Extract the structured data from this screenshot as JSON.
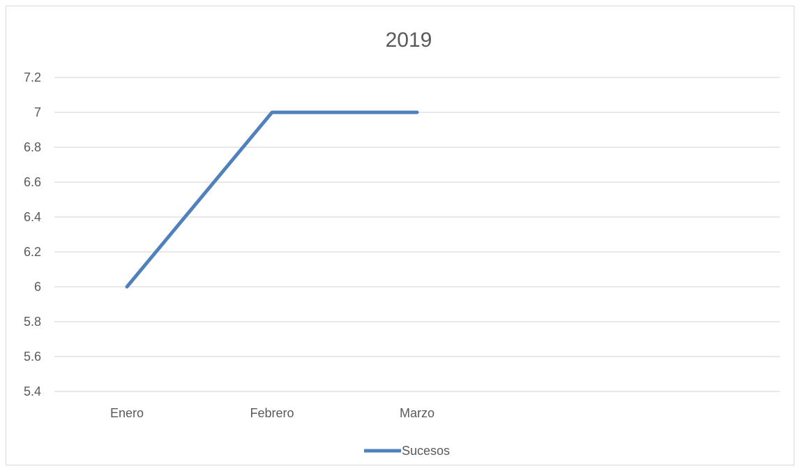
{
  "chart_data": {
    "type": "line",
    "title": "2019",
    "categories": [
      "Enero",
      "Febrero",
      "Marzo",
      "",
      ""
    ],
    "series": [
      {
        "name": "Sucesos",
        "values": [
          6,
          7,
          7,
          null,
          null
        ]
      }
    ],
    "ylim": [
      5.4,
      7.2
    ],
    "yticks": [
      "5.4",
      "5.6",
      "5.8",
      "6",
      "6.2",
      "6.4",
      "6.6",
      "6.8",
      "7",
      "7.2"
    ],
    "grid": true,
    "legend": "bottom",
    "xlabel": "",
    "ylabel": ""
  },
  "colors": {
    "series": "#4f81bd",
    "grid": "#d9d9d9",
    "text": "#595959"
  }
}
